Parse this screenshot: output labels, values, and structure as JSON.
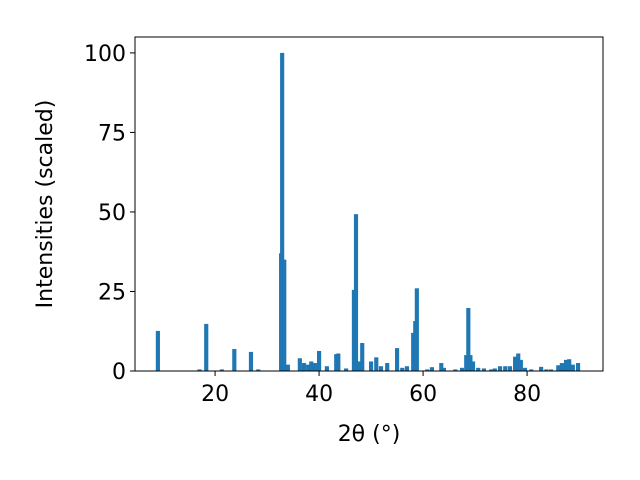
{
  "chart_data": {
    "type": "bar",
    "xlabel": "2θ (°)",
    "ylabel": "Intensities (scaled)",
    "color": "#1f77b4",
    "bar_width": 0.8,
    "x": [
      9.0,
      17.0,
      18.3,
      21.3,
      23.7,
      26.9,
      28.3,
      32.7,
      32.9,
      33.3,
      34.0,
      36.3,
      37.1,
      37.9,
      38.5,
      39.2,
      40.0,
      41.5,
      43.3,
      43.7,
      45.2,
      46.7,
      47.1,
      47.7,
      48.3,
      50.0,
      51.0,
      51.9,
      53.1,
      55.0,
      56.0,
      56.9,
      58.1,
      58.5,
      58.8,
      60.8,
      61.7,
      63.5,
      64.0,
      66.2,
      67.5,
      68.3,
      68.7,
      69.1,
      69.6,
      70.6,
      71.7,
      73.1,
      73.8,
      74.8,
      75.8,
      76.7,
      77.7,
      78.3,
      78.8,
      79.6,
      80.8,
      82.7,
      83.7,
      84.6,
      86.0,
      86.7,
      87.5,
      88.1,
      88.8,
      89.8
    ],
    "values": [
      12.6,
      0.5,
      14.8,
      0.5,
      6.9,
      6.0,
      0.5,
      37,
      100,
      35,
      2,
      4,
      2.5,
      2,
      3,
      2.5,
      6.3,
      1.5,
      5.3,
      5.5,
      0.8,
      25.5,
      49.3,
      3,
      8.8,
      3,
      4.3,
      1.5,
      2.5,
      7.2,
      1,
      1.5,
      12,
      15.7,
      26,
      0.5,
      1.2,
      2.5,
      1,
      0.5,
      1,
      5,
      19.8,
      5,
      3,
      1,
      0.8,
      0.5,
      0.8,
      1.5,
      1.5,
      1.5,
      4.5,
      5.5,
      3.5,
      1,
      0.5,
      1.3,
      0.5,
      0.5,
      1.8,
      2.5,
      3.5,
      3.7,
      2,
      2.5
    ],
    "xlim": [
      4.6,
      94.6
    ],
    "ylim": [
      0,
      105
    ],
    "xticks": [
      20,
      40,
      60,
      80
    ],
    "yticks": [
      0,
      25,
      50,
      75,
      100
    ]
  }
}
